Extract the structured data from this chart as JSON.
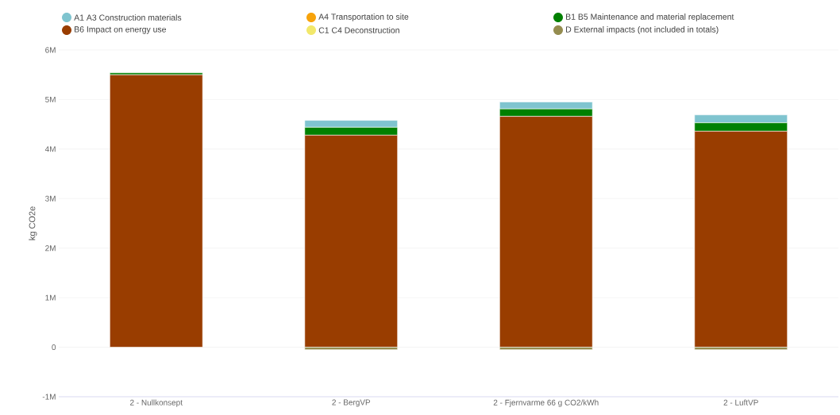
{
  "chart_data": {
    "type": "bar",
    "stacked": true,
    "ylabel": "kg CO2e",
    "categories": [
      "2 - Nullkonsept",
      "2 - BergVP",
      "2 - Fjernvarme 66 g CO2/kWh",
      "2 - LuftVP"
    ],
    "series": [
      {
        "name": "B6 Impact on energy use",
        "color": "#993d00",
        "values": [
          5500000,
          4280000,
          4660000,
          4360000
        ]
      },
      {
        "name": "B1 B5 Maintenance and material replacement",
        "color": "#008000",
        "values": [
          40000,
          160000,
          150000,
          170000
        ]
      },
      {
        "name": "A1 A3 Construction materials",
        "color": "#7fc4cf",
        "values": [
          0,
          140000,
          140000,
          160000
        ]
      },
      {
        "name": "A4 Transportation to site",
        "color": "#f7a30b",
        "values": [
          0,
          0,
          0,
          0
        ]
      },
      {
        "name": "C1 C4 Deconstruction",
        "color": "#f2e86b",
        "values": [
          0,
          0,
          0,
          0
        ]
      },
      {
        "name": "D External impacts (not included in totals)",
        "color": "#948c4f",
        "values": [
          0,
          -50000,
          -50000,
          -50000
        ]
      }
    ],
    "ylim": [
      -1000000,
      6000000
    ],
    "yticks": [
      {
        "value": -1000000,
        "label": "-1M"
      },
      {
        "value": 0,
        "label": "0"
      },
      {
        "value": 1000000,
        "label": "1M"
      },
      {
        "value": 2000000,
        "label": "2M"
      },
      {
        "value": 3000000,
        "label": "3M"
      },
      {
        "value": 4000000,
        "label": "4M"
      },
      {
        "value": 5000000,
        "label": "5M"
      },
      {
        "value": 6000000,
        "label": "6M"
      }
    ],
    "grid": "y",
    "legend": "top"
  }
}
